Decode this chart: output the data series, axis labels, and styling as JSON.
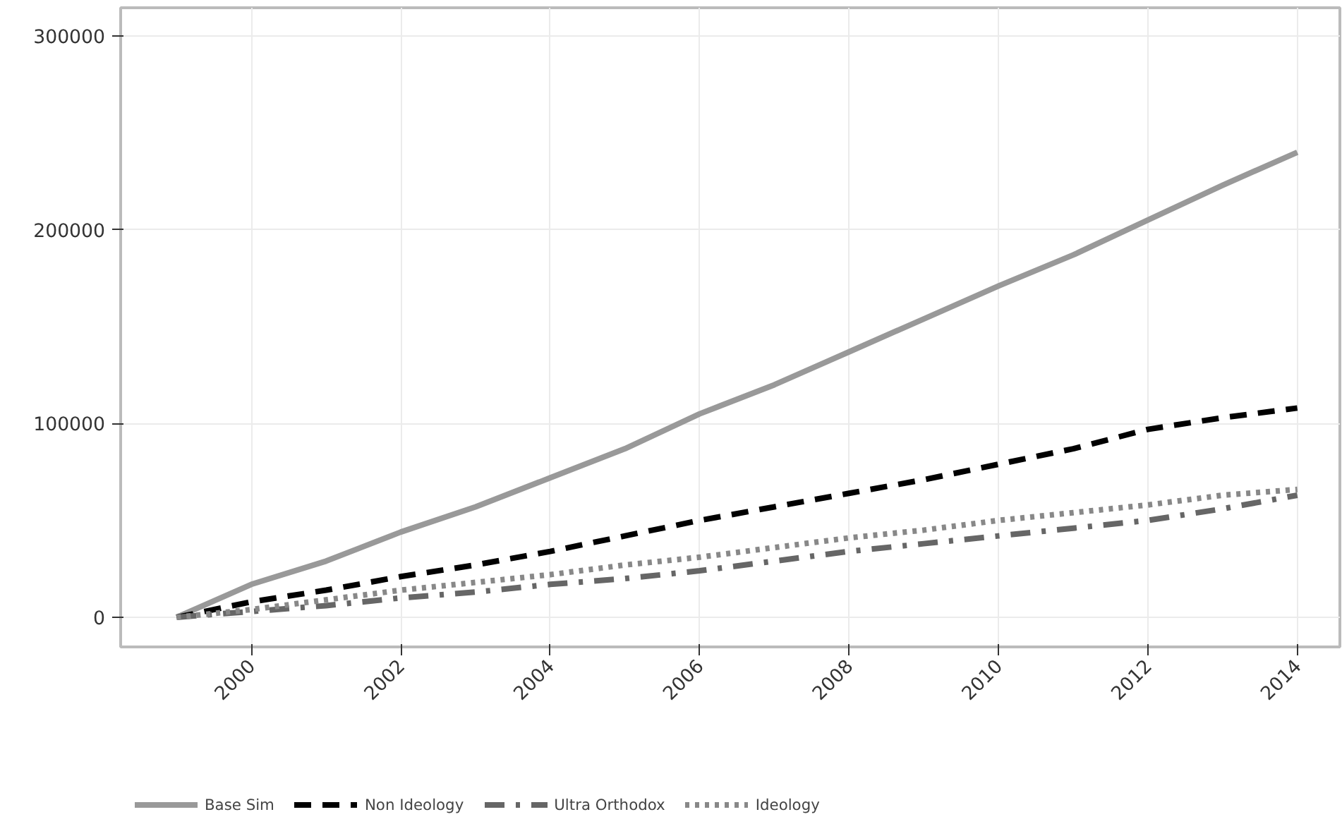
{
  "chart_data": {
    "type": "line",
    "x": [
      1999,
      2000,
      2001,
      2002,
      2003,
      2004,
      2005,
      2006,
      2007,
      2008,
      2009,
      2010,
      2011,
      2012,
      2013,
      2014
    ],
    "series": [
      {
        "name": "Base Sim",
        "color": "#999999",
        "line_style": "solid",
        "values": [
          0,
          17000,
          29000,
          44000,
          57000,
          72000,
          87000,
          105000,
          120000,
          137000,
          154000,
          171000,
          187000,
          205000,
          223000,
          240000
        ]
      },
      {
        "name": "Non Ideology",
        "color": "#000000",
        "line_style": "dashed",
        "values": [
          0,
          8000,
          14000,
          21000,
          27000,
          34000,
          42000,
          50000,
          57000,
          64000,
          71000,
          79000,
          87000,
          97000,
          103000,
          108000
        ]
      },
      {
        "name": "Ultra Orthodox",
        "color": "#666666",
        "line_style": "dashdot",
        "values": [
          0,
          3000,
          6000,
          10000,
          13000,
          17000,
          20000,
          24000,
          29000,
          34000,
          38000,
          42000,
          46000,
          50000,
          56000,
          63000
        ]
      },
      {
        "name": "Ideology",
        "color": "#888888",
        "line_style": "dotted",
        "values": [
          0,
          4000,
          9000,
          14000,
          18000,
          22000,
          27000,
          31000,
          36000,
          41000,
          45000,
          50000,
          54000,
          58000,
          63000,
          66000
        ]
      }
    ],
    "xlim": [
      1998.25,
      2014.57
    ],
    "xticks": [
      2000,
      2002,
      2004,
      2006,
      2008,
      2010,
      2012,
      2014
    ],
    "ylim": [
      -15300,
      314600
    ],
    "yticks": [
      0,
      100000,
      200000,
      300000
    ],
    "grid": true,
    "legend": "bottom"
  }
}
